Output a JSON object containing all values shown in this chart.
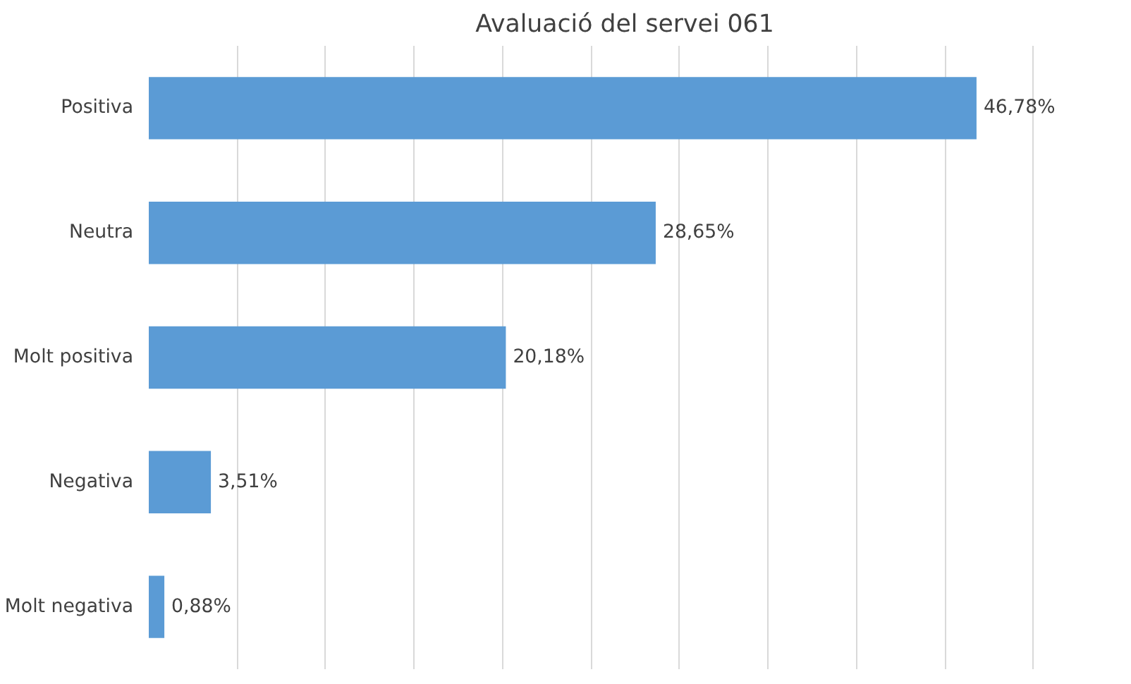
{
  "chart_data": {
    "type": "bar",
    "orientation": "horizontal",
    "title": "Avaluació del servei 061",
    "categories": [
      "Positiva",
      "Neutra",
      "Molt positiva",
      "Negativa",
      "Molt negativa"
    ],
    "values": [
      46.78,
      28.65,
      20.18,
      3.51,
      0.88
    ],
    "value_labels": [
      "46,78%",
      "28,65%",
      "20,18%",
      "3,51%",
      "0,88%"
    ],
    "color": "#5b9bd5",
    "grid": "x",
    "tick_labels": "y"
  }
}
